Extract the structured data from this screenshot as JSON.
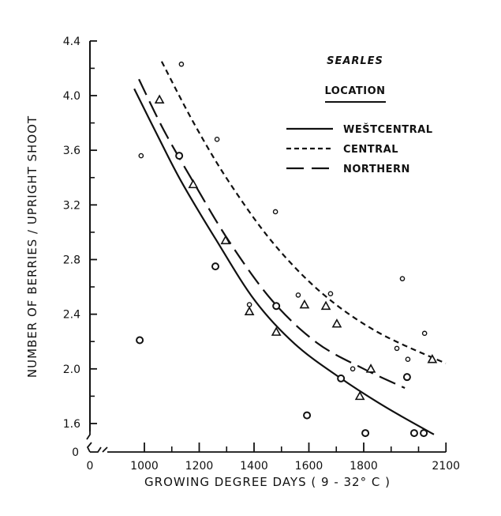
{
  "chart_data": {
    "type": "scatter",
    "title": "SEARLES",
    "legend_title": "LOCATION",
    "legend_position": "top-right",
    "xlabel": "GROWING DEGREE DAYS ( 9 - 32° C )",
    "ylabel": "NUMBER OF BERRIES / UPRIGHT SHOOT",
    "xlim": [
      950,
      2100
    ],
    "ylim": [
      1.5,
      4.4
    ],
    "x_origin_label": "0",
    "y_origin_label": "0",
    "x_ticks": [
      1000,
      1200,
      1400,
      1600,
      1800,
      2100
    ],
    "x_tick_labels": [
      "1000",
      "1200",
      "1400",
      "1600",
      "1800",
      "2100"
    ],
    "x_minor_ticks": [
      1100,
      1300,
      1500,
      1700,
      1900,
      2000
    ],
    "y_ticks": [
      1.6,
      2.0,
      2.4,
      2.8,
      3.2,
      3.6,
      4.0,
      4.4
    ],
    "y_tick_labels": [
      "1.6",
      "2.0",
      "2.4",
      "2.8",
      "3.2",
      "3.6",
      "4.0",
      "4.4"
    ],
    "y_minor_ticks": [
      1.8,
      2.2,
      2.6,
      3.0,
      3.4,
      3.8,
      4.2
    ],
    "grid": false,
    "series": [
      {
        "name": "WEŠTCENTRAL",
        "line_style": "solid",
        "marker": "large-circle",
        "curve": [
          [
            963,
            4.05
          ],
          [
            1050,
            3.7
          ],
          [
            1135,
            3.37
          ],
          [
            1260,
            2.95
          ],
          [
            1403,
            2.5
          ],
          [
            1550,
            2.18
          ],
          [
            1717,
            1.93
          ],
          [
            1880,
            1.72
          ],
          [
            2056,
            1.52
          ]
        ],
        "points": [
          [
            983,
            2.21
          ],
          [
            1127,
            3.56
          ],
          [
            1259,
            2.75
          ],
          [
            1481,
            2.46
          ],
          [
            1593,
            1.66
          ],
          [
            1717,
            1.93
          ],
          [
            1806,
            1.53
          ],
          [
            1958,
            1.94
          ],
          [
            1984,
            1.53
          ],
          [
            2019,
            1.53
          ]
        ]
      },
      {
        "name": "CENTRAL",
        "line_style": "short-dash",
        "marker": "small-circle",
        "curve": [
          [
            1063,
            4.25
          ],
          [
            1180,
            3.8
          ],
          [
            1308,
            3.37
          ],
          [
            1470,
            2.92
          ],
          [
            1650,
            2.55
          ],
          [
            1850,
            2.27
          ],
          [
            2099,
            2.04
          ]
        ],
        "points": [
          [
            988,
            3.56
          ],
          [
            1135,
            4.23
          ],
          [
            1265,
            3.68
          ],
          [
            1478,
            3.15
          ],
          [
            1383,
            2.47
          ],
          [
            1561,
            2.54
          ],
          [
            1679,
            2.55
          ],
          [
            1760,
            2.0
          ],
          [
            1921,
            2.15
          ],
          [
            1941,
            2.66
          ],
          [
            1961,
            2.07
          ],
          [
            2022,
            2.26
          ]
        ]
      },
      {
        "name": "NORTHERN",
        "line_style": "long-dash",
        "marker": "triangle",
        "curve": [
          [
            980,
            4.12
          ],
          [
            1070,
            3.75
          ],
          [
            1178,
            3.37
          ],
          [
            1310,
            2.93
          ],
          [
            1466,
            2.5
          ],
          [
            1630,
            2.19
          ],
          [
            1800,
            2.0
          ],
          [
            1950,
            1.86
          ]
        ],
        "points": [
          [
            1055,
            3.97
          ],
          [
            1178,
            3.35
          ],
          [
            1296,
            2.94
          ],
          [
            1383,
            2.42
          ],
          [
            1481,
            2.27
          ],
          [
            1584,
            2.47
          ],
          [
            1662,
            2.46
          ],
          [
            1702,
            2.33
          ],
          [
            1786,
            1.8
          ],
          [
            1826,
            2.0
          ],
          [
            2050,
            2.07
          ]
        ]
      }
    ]
  },
  "colors": {
    "ink": "#111111",
    "background": "#ffffff"
  }
}
